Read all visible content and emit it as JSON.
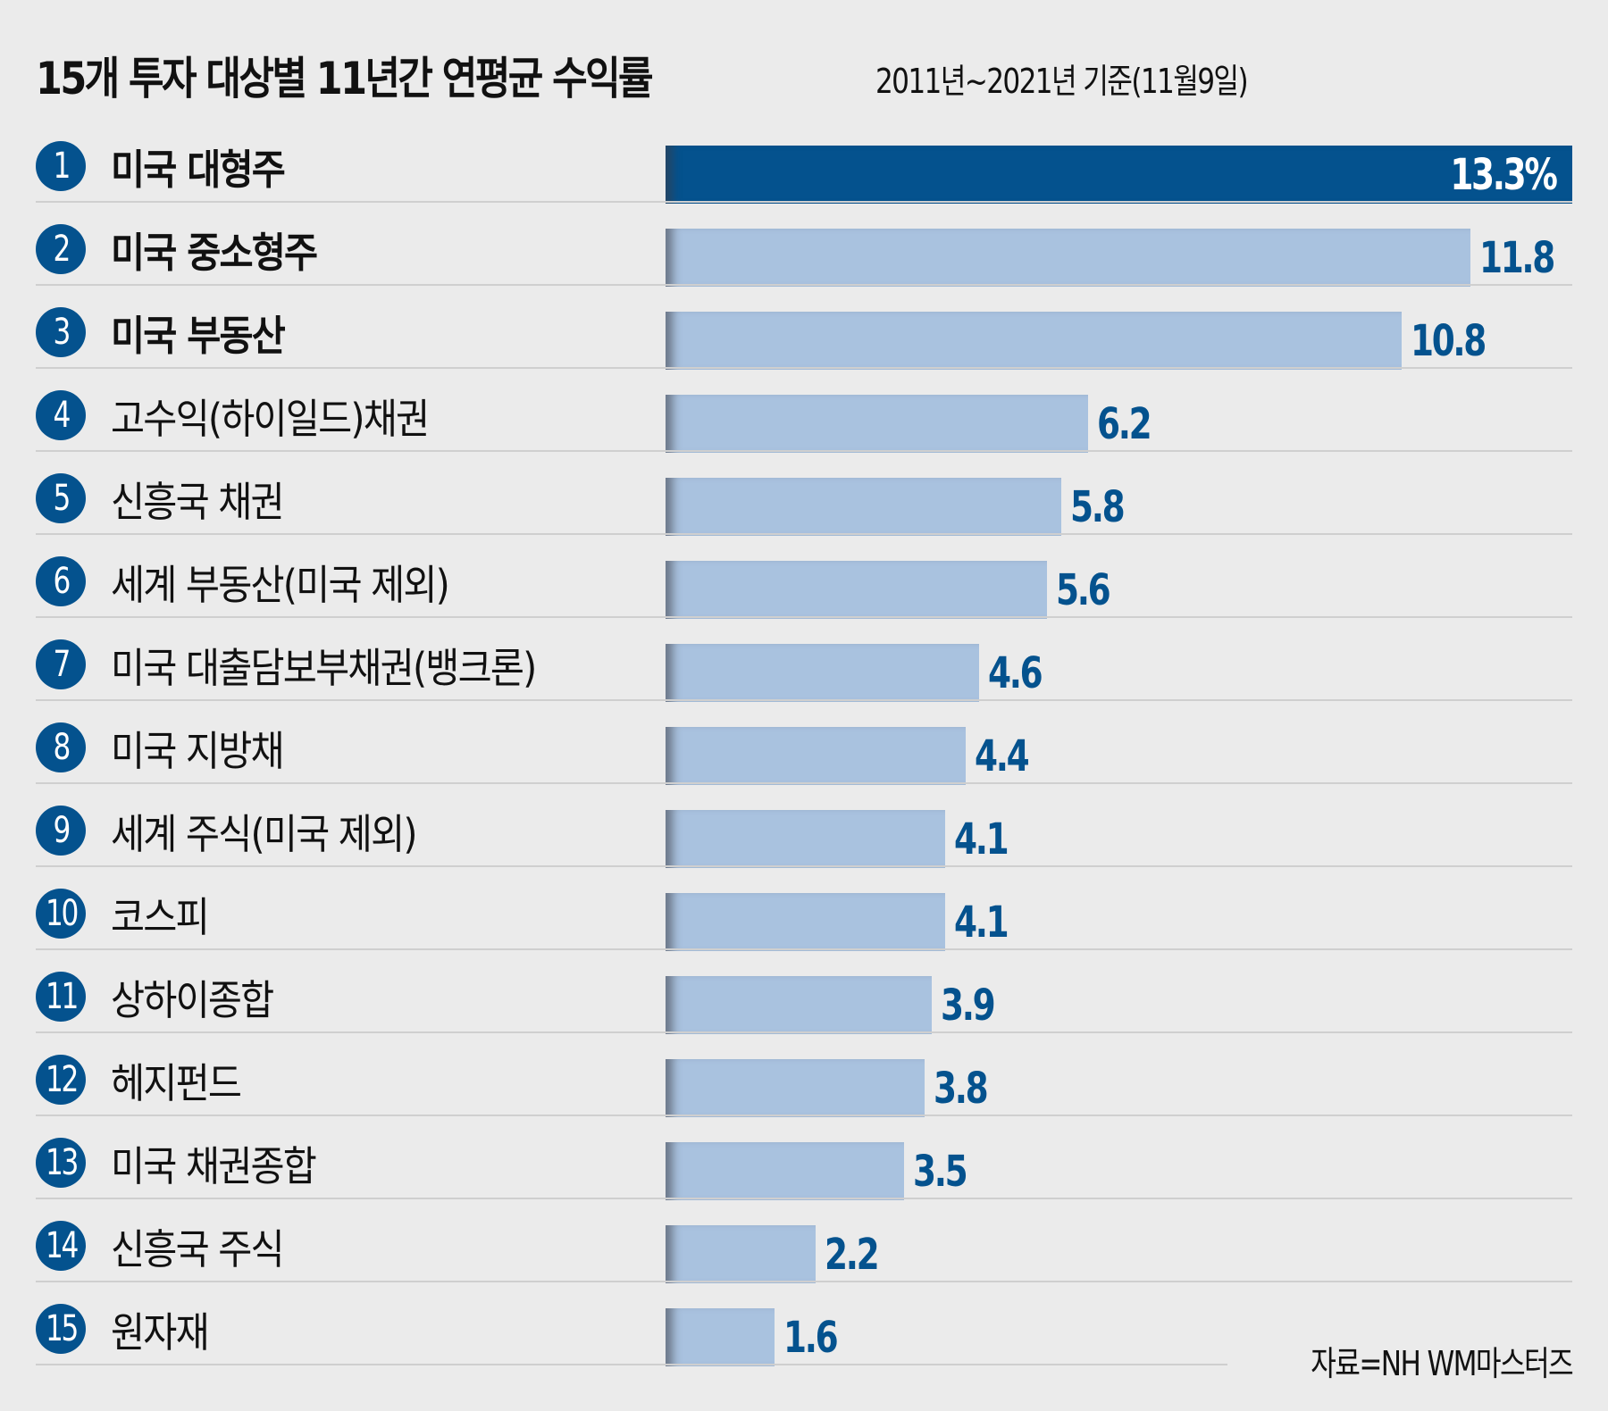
{
  "title": "15개 투자 대상별 11년간 연평균 수익률",
  "subtitle": "2011년~2021년 기준(11월9일)",
  "source": "자료=NH WM마스터즈",
  "colors": {
    "highlight": "#04528e",
    "bar": "#a9c2df",
    "value_text": "#04528e",
    "background": "#ebebeb"
  },
  "chart_data": {
    "type": "bar",
    "orientation": "horizontal",
    "title": "15개 투자 대상별 11년간 연평균 수익률",
    "subtitle": "2011년~2021년 기준(11월9일)",
    "unit": "%",
    "ranks": [
      "1",
      "2",
      "3",
      "4",
      "5",
      "6",
      "7",
      "8",
      "9",
      "10",
      "11",
      "12",
      "13",
      "14",
      "15"
    ],
    "categories": [
      "미국 대형주",
      "미국 중소형주",
      "미국 부동산",
      "고수익(하이일드)채권",
      "신흥국 채권",
      "세계 부동산(미국 제외)",
      "미국 대출담보부채권(뱅크론)",
      "미국 지방채",
      "세계 주식(미국 제외)",
      "코스피",
      "상하이종합",
      "헤지펀드",
      "미국 채권종합",
      "신흥국 주식",
      "원자재"
    ],
    "values": [
      13.3,
      11.8,
      10.8,
      6.2,
      5.8,
      5.6,
      4.6,
      4.4,
      4.1,
      4.1,
      3.9,
      3.8,
      3.5,
      2.2,
      1.6
    ],
    "value_labels": [
      "13.3%",
      "11.8",
      "10.8",
      "6.2",
      "5.8",
      "5.6",
      "4.6",
      "4.4",
      "4.1",
      "4.1",
      "3.9",
      "3.8",
      "3.5",
      "2.2",
      "1.6"
    ],
    "bold_categories": [
      true,
      true,
      true,
      false,
      false,
      false,
      false,
      false,
      false,
      false,
      false,
      false,
      false,
      false,
      false
    ],
    "xlim": [
      0,
      13.3
    ],
    "grid": false,
    "legend": "none"
  }
}
